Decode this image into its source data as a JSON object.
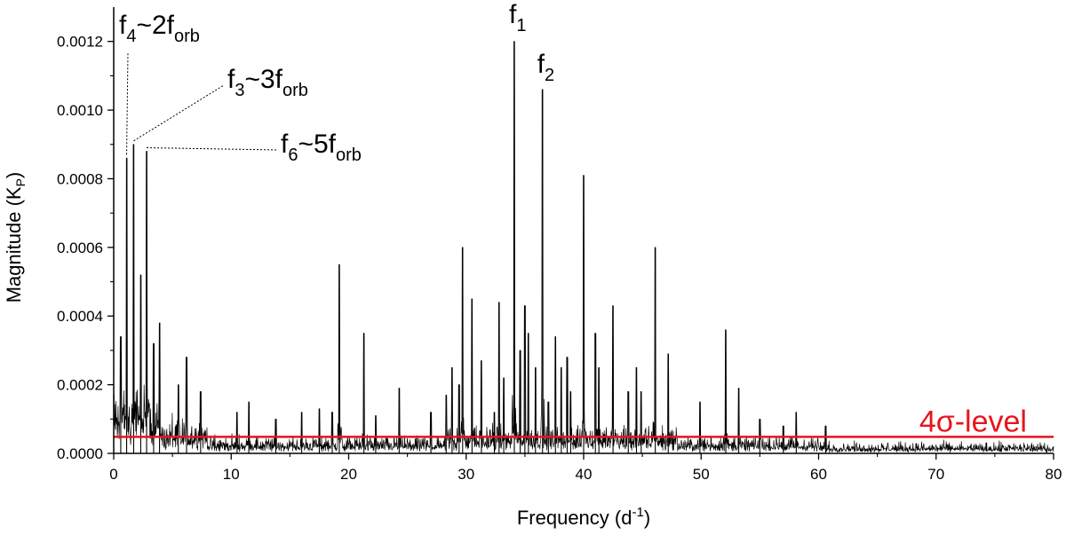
{
  "chart_data": {
    "type": "line",
    "title": "",
    "xlabel": {
      "main": "Frequency (d",
      "sup": "-1",
      "close": ")"
    },
    "ylabel": {
      "main": "Magnitude (K",
      "sub": "P",
      "close": ")"
    },
    "xlim": [
      0,
      80
    ],
    "ylim": [
      0,
      0.0013
    ],
    "x_ticks": [
      0,
      10,
      20,
      30,
      40,
      50,
      60,
      70,
      80
    ],
    "x_tick_labels": [
      "0",
      "10",
      "20",
      "30",
      "40",
      "50",
      "60",
      "70",
      "80"
    ],
    "y_ticks": [
      0,
      0.0002,
      0.0004,
      0.0006,
      0.0008,
      0.001,
      0.0012
    ],
    "y_tick_labels": [
      "0.0000",
      "0.0002",
      "0.0004",
      "0.0006",
      "0.0008",
      "0.0010",
      "0.0012"
    ],
    "grid": false,
    "series": [
      {
        "color": "#000000",
        "peaks": [
          [
            0.6,
            0.00034
          ],
          [
            1.1,
            0.00086
          ],
          [
            1.7,
            0.0009
          ],
          [
            2.3,
            0.00052
          ],
          [
            2.8,
            0.00088
          ],
          [
            3.4,
            0.00032
          ],
          [
            3.9,
            0.00038
          ],
          [
            5.5,
            0.0002
          ],
          [
            6.2,
            0.00028
          ],
          [
            7.4,
            0.00018
          ],
          [
            10.5,
            0.00012
          ],
          [
            11.5,
            0.00015
          ],
          [
            13.8,
            0.0001
          ],
          [
            16.0,
            0.00012
          ],
          [
            17.5,
            0.00013
          ],
          [
            18.6,
            0.00012
          ],
          [
            19.2,
            0.00055
          ],
          [
            21.3,
            0.00035
          ],
          [
            22.3,
            0.00011
          ],
          [
            24.3,
            0.00019
          ],
          [
            27.0,
            0.00012
          ],
          [
            28.3,
            0.00017
          ],
          [
            28.8,
            0.00025
          ],
          [
            29.4,
            0.0002
          ],
          [
            29.7,
            0.0006
          ],
          [
            30.5,
            0.00045
          ],
          [
            31.3,
            0.00027
          ],
          [
            32.4,
            0.00012
          ],
          [
            32.8,
            0.00044
          ],
          [
            33.2,
            0.00022
          ],
          [
            34.1,
            0.0012
          ],
          [
            34.6,
            0.0003
          ],
          [
            35.0,
            0.00043
          ],
          [
            35.3,
            0.00035
          ],
          [
            35.9,
            0.00025
          ],
          [
            36.5,
            0.00106
          ],
          [
            37.0,
            0.00015
          ],
          [
            37.6,
            0.00034
          ],
          [
            38.1,
            0.00025
          ],
          [
            38.6,
            0.00028
          ],
          [
            38.9,
            0.00018
          ],
          [
            40.0,
            0.00081
          ],
          [
            41.0,
            0.00035
          ],
          [
            41.3,
            0.00025
          ],
          [
            42.5,
            0.00043
          ],
          [
            43.8,
            0.00018
          ],
          [
            44.5,
            0.00025
          ],
          [
            44.9,
            0.00018
          ],
          [
            46.1,
            0.0006
          ],
          [
            47.2,
            0.00029
          ],
          [
            49.9,
            0.00015
          ],
          [
            52.1,
            0.00036
          ],
          [
            53.2,
            0.00019
          ],
          [
            55.0,
            0.0001
          ],
          [
            57.0,
            8e-05
          ],
          [
            58.1,
            0.00012
          ],
          [
            60.6,
            8e-05
          ]
        ]
      }
    ],
    "threshold": {
      "value": 4.8e-05,
      "label": "4σ-level",
      "color": "#e8141b"
    },
    "annotations": [
      {
        "base": "f",
        "sub": "4",
        "mid": "~2f",
        "sub2": "orb",
        "peak_x": 1.1,
        "peak_y": 0.00086
      },
      {
        "base": "f",
        "sub": "3",
        "mid": "~3f",
        "sub2": "orb",
        "peak_x": 1.7,
        "peak_y": 0.0009
      },
      {
        "base": "f",
        "sub": "6",
        "mid": "~5f",
        "sub2": "orb",
        "peak_x": 2.8,
        "peak_y": 0.00088
      },
      {
        "base": "f",
        "sub": "1",
        "mid": "",
        "sub2": "",
        "peak_x": 34.1,
        "peak_y": 0.0012
      },
      {
        "base": "f",
        "sub": "2",
        "mid": "",
        "sub2": "",
        "peak_x": 36.5,
        "peak_y": 0.00106
      }
    ]
  }
}
